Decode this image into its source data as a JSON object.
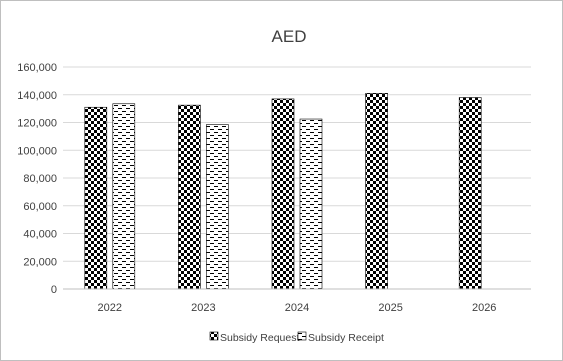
{
  "chart_data": {
    "type": "bar",
    "title": "AED",
    "xlabel": "",
    "ylabel": "",
    "categories": [
      "2022",
      "2023",
      "2024",
      "2025",
      "2026"
    ],
    "series": [
      {
        "name": "Subsidy Request",
        "pattern": "checkerboard",
        "values": [
          131000,
          132500,
          137000,
          141000,
          138000
        ]
      },
      {
        "name": "Subsidy Receipt",
        "pattern": "dashes",
        "values": [
          133500,
          118500,
          122500,
          null,
          null
        ]
      }
    ],
    "ylim": [
      0,
      160000
    ],
    "yticks": [
      "0",
      "20,000",
      "40,000",
      "60,000",
      "80,000",
      "100,000",
      "120,000",
      "140,000",
      "160,000"
    ],
    "grid": true,
    "legend_position": "bottom",
    "colors": {
      "axis": "#bfbfbf",
      "grid": "#d9d9d9",
      "text": "#404040",
      "bar": "#000000"
    }
  }
}
